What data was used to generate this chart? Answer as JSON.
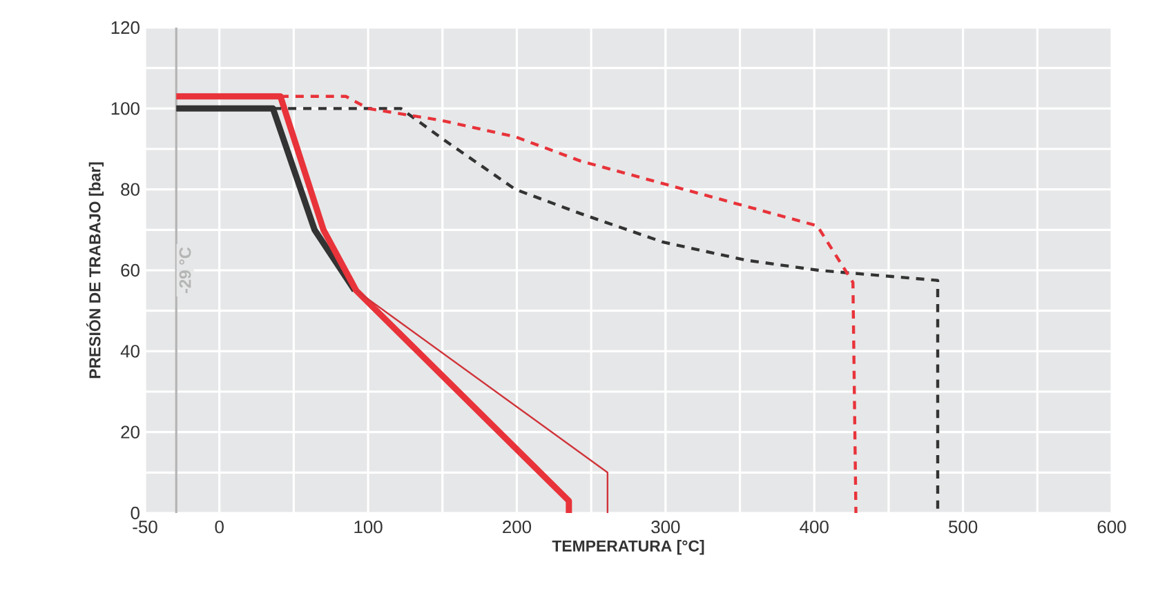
{
  "chart_data": {
    "type": "line",
    "xlabel": "TEMPERATURA [°C]",
    "ylabel": "PRESIÓN DE TRABAJO [bar]",
    "xlim": [
      -50,
      600
    ],
    "ylim": [
      0,
      120
    ],
    "xticks": [
      -50,
      0,
      {
        "value": 50,
        "label": null
      },
      100,
      {
        "value": 150,
        "label": null
      },
      200,
      {
        "value": 250,
        "label": null
      },
      300,
      {
        "value": 350,
        "label": null
      },
      400,
      {
        "value": 450,
        "label": null
      },
      500,
      {
        "value": 550,
        "label": null
      },
      600
    ],
    "yticks": [
      0,
      {
        "value": 10,
        "label": null
      },
      20,
      {
        "value": 30,
        "label": null
      },
      40,
      {
        "value": 50,
        "label": null
      },
      60,
      {
        "value": 70,
        "label": null
      },
      80,
      {
        "value": 90,
        "label": null
      },
      100,
      {
        "value": 110,
        "label": null
      },
      120
    ],
    "grid": true,
    "series": [
      {
        "color": "#333333",
        "line_style": "solid",
        "x": [
          -29,
          36,
          64,
          91
        ],
        "values": [
          100,
          100,
          70,
          55
        ]
      },
      {
        "color": "#e8333a",
        "line_style": "solid",
        "x": [
          -29,
          41,
          70,
          92,
          235,
          235
        ],
        "values": [
          103,
          103,
          70,
          55,
          3,
          0
        ]
      },
      {
        "color": "#d0343a",
        "line_style": "solid",
        "x": [
          92,
          261,
          261
        ],
        "values": [
          55,
          10,
          0
        ]
      },
      {
        "color": "#333333",
        "line_style": "dashed",
        "x": [
          36,
          122,
          150,
          199,
          243,
          298,
          354,
          403,
          483,
          483
        ],
        "values": [
          100,
          100,
          92.5,
          80,
          74,
          67,
          62.5,
          60,
          57.5,
          0
        ]
      },
      {
        "color": "#e8333a",
        "line_style": "dashed",
        "x": [
          41,
          85,
          100,
          150,
          199,
          243,
          402,
          426,
          428
        ],
        "values": [
          103,
          103,
          100,
          97,
          93,
          87,
          71,
          57,
          0
        ]
      }
    ],
    "ref_lines": [
      {
        "axis": "x",
        "value": -29,
        "label": "-29 °C",
        "color": "#b5b5b5"
      }
    ]
  }
}
